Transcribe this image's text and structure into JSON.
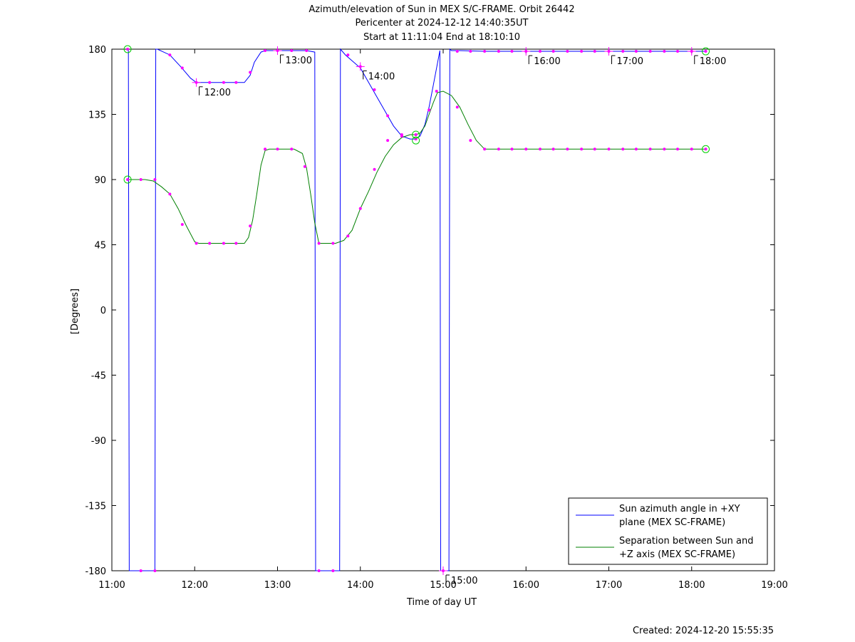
{
  "chart_data": {
    "type": "line",
    "title_lines": [
      "Azimuth/elevation of Sun in MEX S/C-FRAME.  Orbit 26442",
      "Pericenter at 2024-12-12 14:40:35UT",
      "Start at 11:11:04 End at 18:10:10"
    ],
    "xlabel": "Time of day UT",
    "ylabel": "[Degrees]",
    "footer": "Created: 2024-12-20 15:55:35",
    "xlim": [
      11.0,
      19.0
    ],
    "ylim": [
      -180,
      180
    ],
    "x_ticks": [
      11,
      12,
      13,
      14,
      15,
      16,
      17,
      18,
      19
    ],
    "x_tick_labels": [
      "11:00",
      "12:00",
      "13:00",
      "14:00",
      "15:00",
      "16:00",
      "17:00",
      "18:00",
      "19:00"
    ],
    "y_ticks": [
      180,
      135,
      90,
      45,
      0,
      -45,
      -90,
      -135,
      -180
    ],
    "y_tick_labels": [
      "180",
      "135",
      "90",
      "45",
      "0",
      "-45",
      "-90",
      "-135",
      "-180"
    ],
    "legend_position": "bottom-right",
    "series": [
      {
        "name": "Sun azimuth angle in +XY plane (MEX SC-FRAME)",
        "legend_lines": [
          "Sun azimuth angle in +XY",
          "plane (MEX SC-FRAME)"
        ],
        "color": "#0000ff",
        "points": [
          [
            11.185,
            180
          ],
          [
            11.19,
            180
          ],
          [
            11.2,
            179
          ],
          [
            11.21,
            -180
          ],
          [
            11.52,
            -180
          ],
          [
            11.53,
            180
          ],
          [
            11.55,
            180
          ],
          [
            11.7,
            176
          ],
          [
            11.83,
            168
          ],
          [
            11.95,
            160
          ],
          [
            12.02,
            157
          ],
          [
            12.1,
            157
          ],
          [
            12.3,
            157
          ],
          [
            12.5,
            157
          ],
          [
            12.6,
            157
          ],
          [
            12.67,
            162
          ],
          [
            12.72,
            171
          ],
          [
            12.8,
            178
          ],
          [
            12.85,
            179
          ],
          [
            13.0,
            179
          ],
          [
            13.2,
            179
          ],
          [
            13.35,
            179
          ],
          [
            13.45,
            178
          ],
          [
            13.46,
            -180
          ],
          [
            13.75,
            -180
          ],
          [
            13.76,
            180
          ],
          [
            13.82,
            176
          ],
          [
            13.9,
            172
          ],
          [
            14.0,
            167
          ],
          [
            14.1,
            157
          ],
          [
            14.2,
            147
          ],
          [
            14.3,
            137
          ],
          [
            14.4,
            127
          ],
          [
            14.5,
            120
          ],
          [
            14.6,
            118
          ],
          [
            14.67,
            118
          ],
          [
            14.72,
            120
          ],
          [
            14.78,
            128
          ],
          [
            14.83,
            140
          ],
          [
            14.88,
            155
          ],
          [
            14.93,
            170
          ],
          [
            14.96,
            179
          ],
          [
            14.97,
            -180
          ],
          [
            15.07,
            -180
          ],
          [
            15.08,
            180
          ],
          [
            15.1,
            179
          ],
          [
            15.2,
            179
          ],
          [
            15.5,
            178.5
          ],
          [
            16.0,
            178.5
          ],
          [
            16.5,
            178.5
          ],
          [
            17.0,
            178.5
          ],
          [
            17.5,
            178.5
          ],
          [
            18.0,
            178.5
          ],
          [
            18.17,
            178.5
          ]
        ],
        "markers": [
          [
            11.19,
            180
          ],
          [
            11.35,
            -180
          ],
          [
            11.52,
            -180
          ],
          [
            11.7,
            176
          ],
          [
            11.85,
            167
          ],
          [
            12.02,
            157
          ],
          [
            12.18,
            157
          ],
          [
            12.35,
            157
          ],
          [
            12.5,
            157
          ],
          [
            12.67,
            164
          ],
          [
            12.85,
            179
          ],
          [
            13.0,
            179
          ],
          [
            13.17,
            179
          ],
          [
            13.35,
            179
          ],
          [
            13.5,
            -180
          ],
          [
            13.67,
            -180
          ],
          [
            13.85,
            176
          ],
          [
            14.0,
            168
          ],
          [
            14.17,
            152
          ],
          [
            14.33,
            134
          ],
          [
            14.5,
            120
          ],
          [
            14.67,
            118
          ],
          [
            14.83,
            138
          ],
          [
            15.0,
            -180
          ],
          [
            15.17,
            178.5
          ],
          [
            15.33,
            178.5
          ],
          [
            15.5,
            178.5
          ],
          [
            15.67,
            178.5
          ],
          [
            15.83,
            178.5
          ],
          [
            16.0,
            178.5
          ],
          [
            16.17,
            178.5
          ],
          [
            16.33,
            178.5
          ],
          [
            16.5,
            178.5
          ],
          [
            16.67,
            178.5
          ],
          [
            16.83,
            178.5
          ],
          [
            17.0,
            178.5
          ],
          [
            17.17,
            178.5
          ],
          [
            17.33,
            178.5
          ],
          [
            17.5,
            178.5
          ],
          [
            17.67,
            178.5
          ],
          [
            17.83,
            178.5
          ],
          [
            18.0,
            178.5
          ],
          [
            18.17,
            178.5
          ]
        ]
      },
      {
        "name": "Separation between Sun and +Z axis (MEX SC-FRAME)",
        "legend_lines": [
          "Separation between Sun and",
          "+Z axis (MEX SC-FRAME)"
        ],
        "color": "#008000",
        "points": [
          [
            11.185,
            90
          ],
          [
            11.3,
            90
          ],
          [
            11.4,
            90
          ],
          [
            11.5,
            89
          ],
          [
            11.6,
            85
          ],
          [
            11.7,
            80
          ],
          [
            11.8,
            70
          ],
          [
            11.9,
            58
          ],
          [
            12.0,
            47
          ],
          [
            12.05,
            46
          ],
          [
            12.2,
            46
          ],
          [
            12.4,
            46
          ],
          [
            12.6,
            46
          ],
          [
            12.65,
            50
          ],
          [
            12.7,
            62
          ],
          [
            12.75,
            80
          ],
          [
            12.8,
            100
          ],
          [
            12.85,
            110
          ],
          [
            12.9,
            111
          ],
          [
            13.0,
            111
          ],
          [
            13.2,
            111
          ],
          [
            13.3,
            108
          ],
          [
            13.35,
            98
          ],
          [
            13.4,
            80
          ],
          [
            13.45,
            60
          ],
          [
            13.5,
            46
          ],
          [
            13.55,
            46
          ],
          [
            13.7,
            46
          ],
          [
            13.8,
            48
          ],
          [
            13.9,
            55
          ],
          [
            14.0,
            70
          ],
          [
            14.1,
            82
          ],
          [
            14.2,
            95
          ],
          [
            14.3,
            106
          ],
          [
            14.4,
            114
          ],
          [
            14.5,
            119
          ],
          [
            14.6,
            121
          ],
          [
            14.67,
            121
          ],
          [
            14.72,
            122
          ],
          [
            14.78,
            127
          ],
          [
            14.83,
            135
          ],
          [
            14.88,
            143
          ],
          [
            14.93,
            150
          ],
          [
            15.0,
            151
          ],
          [
            15.1,
            148
          ],
          [
            15.2,
            140
          ],
          [
            15.3,
            128
          ],
          [
            15.4,
            117
          ],
          [
            15.5,
            111
          ],
          [
            15.6,
            111
          ],
          [
            16.0,
            111
          ],
          [
            16.5,
            111
          ],
          [
            17.0,
            111
          ],
          [
            17.5,
            111
          ],
          [
            18.0,
            111
          ],
          [
            18.17,
            111
          ]
        ],
        "markers": [
          [
            11.19,
            90
          ],
          [
            11.35,
            90
          ],
          [
            11.52,
            90
          ],
          [
            11.7,
            80
          ],
          [
            11.85,
            59
          ],
          [
            12.02,
            46
          ],
          [
            12.18,
            46
          ],
          [
            12.35,
            46
          ],
          [
            12.5,
            46
          ],
          [
            12.67,
            58
          ],
          [
            12.85,
            111
          ],
          [
            13.0,
            111
          ],
          [
            13.17,
            111
          ],
          [
            13.33,
            99
          ],
          [
            13.5,
            46
          ],
          [
            13.67,
            46
          ],
          [
            13.85,
            51
          ],
          [
            14.0,
            70
          ],
          [
            14.17,
            97
          ],
          [
            14.33,
            117
          ],
          [
            14.5,
            121
          ],
          [
            14.67,
            121
          ],
          [
            14.83,
            138
          ],
          [
            14.92,
            151
          ],
          [
            15.17,
            140
          ],
          [
            15.33,
            117
          ],
          [
            15.5,
            111
          ],
          [
            15.67,
            111
          ],
          [
            15.83,
            111
          ],
          [
            16.0,
            111
          ],
          [
            16.17,
            111
          ],
          [
            16.33,
            111
          ],
          [
            16.5,
            111
          ],
          [
            16.67,
            111
          ],
          [
            16.83,
            111
          ],
          [
            17.0,
            111
          ],
          [
            17.17,
            111
          ],
          [
            17.33,
            111
          ],
          [
            17.5,
            111
          ],
          [
            17.67,
            111
          ],
          [
            17.83,
            111
          ],
          [
            18.0,
            111
          ],
          [
            18.17,
            111
          ]
        ]
      }
    ],
    "circle_markers": [
      [
        11.19,
        180
      ],
      [
        11.19,
        90
      ],
      [
        14.67,
        121
      ],
      [
        14.67,
        117
      ],
      [
        18.17,
        178.5
      ],
      [
        18.17,
        111
      ]
    ],
    "hour_marks": [
      {
        "label": "12:00",
        "x": 12.02,
        "y": 157
      },
      {
        "label": "13:00",
        "x": 13.0,
        "y": 179
      },
      {
        "label": "14:00",
        "x": 14.0,
        "y": 168
      },
      {
        "label": "15:00",
        "x": 15.0,
        "y": -180
      },
      {
        "label": "16:00",
        "x": 16.0,
        "y": 178.5
      },
      {
        "label": "17:00",
        "x": 17.0,
        "y": 178.5
      },
      {
        "label": "18:00",
        "x": 18.0,
        "y": 178.5
      }
    ]
  }
}
